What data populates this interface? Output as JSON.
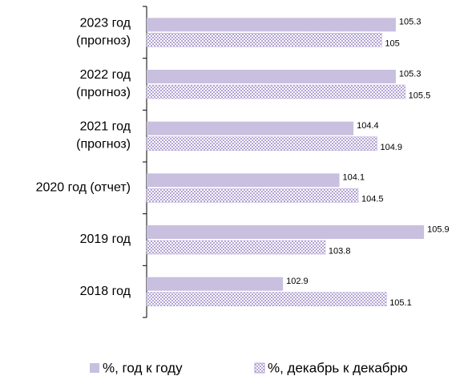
{
  "chart_data": {
    "type": "bar",
    "orientation": "horizontal",
    "categories": [
      "2023 год\n(прогноз)",
      "2022 год\n(прогноз)",
      "2021 год\n(прогноз)",
      "2020 год (отчет)",
      "2019 год",
      "2018 год"
    ],
    "series": [
      {
        "name": "%, год к году",
        "color": "#c9bfdf",
        "values": [
          105.3,
          105.3,
          104.4,
          104.1,
          105.9,
          102.9
        ]
      },
      {
        "name": "%, декабрь к декабрю",
        "color": "#b3a3d3",
        "pattern": "checker",
        "values": [
          105,
          105.5,
          104.9,
          104.5,
          103.8,
          105.1
        ]
      }
    ],
    "xlim": [
      100,
      106
    ],
    "legend": "bottom"
  }
}
